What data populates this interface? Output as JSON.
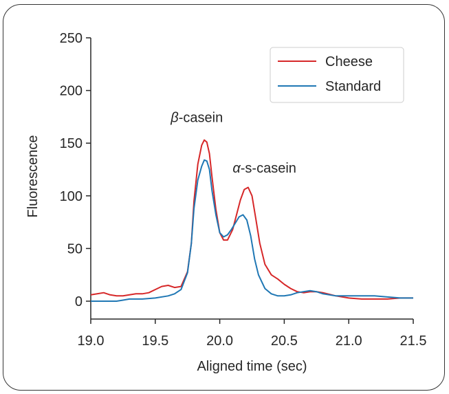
{
  "chart_data": {
    "type": "line",
    "xlabel": "Aligned time (sec)",
    "ylabel": "Fluorescence",
    "xlim": [
      19.0,
      21.5
    ],
    "ylim": [
      0,
      250
    ],
    "xticks": [
      "19.0",
      "19.5",
      "20.0",
      "20.5",
      "21.0",
      "21.5"
    ],
    "yticks": [
      "0",
      "50",
      "100",
      "150",
      "200",
      "250"
    ],
    "grid": false,
    "legend_position": "top-right",
    "colors": {
      "Cheese": "#d62728",
      "Standard": "#1f77b4"
    },
    "annotations": [
      {
        "greek": "β",
        "text": "-casein",
        "x": 19.62,
        "y": 170
      },
      {
        "greek": "α",
        "text": "-s-casein",
        "x": 20.1,
        "y": 122
      }
    ],
    "series": [
      {
        "name": "Cheese",
        "x": [
          19.0,
          19.05,
          19.1,
          19.15,
          19.2,
          19.25,
          19.3,
          19.35,
          19.4,
          19.45,
          19.5,
          19.55,
          19.6,
          19.65,
          19.7,
          19.75,
          19.78,
          19.8,
          19.83,
          19.86,
          19.88,
          19.9,
          19.92,
          19.94,
          19.97,
          20.0,
          20.03,
          20.06,
          20.1,
          20.13,
          20.16,
          20.19,
          20.22,
          20.25,
          20.28,
          20.31,
          20.35,
          20.4,
          20.45,
          20.5,
          20.55,
          20.6,
          20.65,
          20.7,
          20.75,
          20.8,
          20.9,
          21.0,
          21.1,
          21.2,
          21.3,
          21.4,
          21.5
        ],
        "values": [
          6,
          7,
          8,
          6,
          5,
          5,
          6,
          7,
          7,
          8,
          11,
          14,
          15,
          13,
          14,
          28,
          55,
          95,
          130,
          148,
          153,
          151,
          140,
          118,
          87,
          65,
          58,
          58,
          68,
          82,
          96,
          106,
          108,
          100,
          78,
          55,
          35,
          25,
          21,
          16,
          12,
          9,
          8,
          9,
          9,
          8,
          5,
          3,
          2,
          2,
          2,
          3,
          3
        ]
      },
      {
        "name": "Standard",
        "x": [
          19.0,
          19.1,
          19.2,
          19.25,
          19.3,
          19.4,
          19.5,
          19.6,
          19.65,
          19.7,
          19.75,
          19.78,
          19.8,
          19.83,
          19.86,
          19.88,
          19.9,
          19.92,
          19.94,
          19.97,
          20.0,
          20.03,
          20.06,
          20.09,
          20.12,
          20.15,
          20.18,
          20.21,
          20.24,
          20.27,
          20.3,
          20.35,
          20.4,
          20.45,
          20.5,
          20.55,
          20.6,
          20.65,
          20.7,
          20.75,
          20.8,
          20.9,
          21.0,
          21.1,
          21.2,
          21.3,
          21.4,
          21.5
        ],
        "values": [
          0,
          0,
          0,
          1,
          2,
          2,
          3,
          5,
          7,
          11,
          27,
          55,
          88,
          115,
          128,
          134,
          133,
          125,
          105,
          82,
          65,
          61,
          63,
          68,
          74,
          80,
          82,
          77,
          62,
          40,
          25,
          12,
          7,
          5,
          5,
          6,
          8,
          9,
          10,
          9,
          7,
          5,
          5,
          5,
          5,
          4,
          3,
          3
        ]
      }
    ]
  }
}
